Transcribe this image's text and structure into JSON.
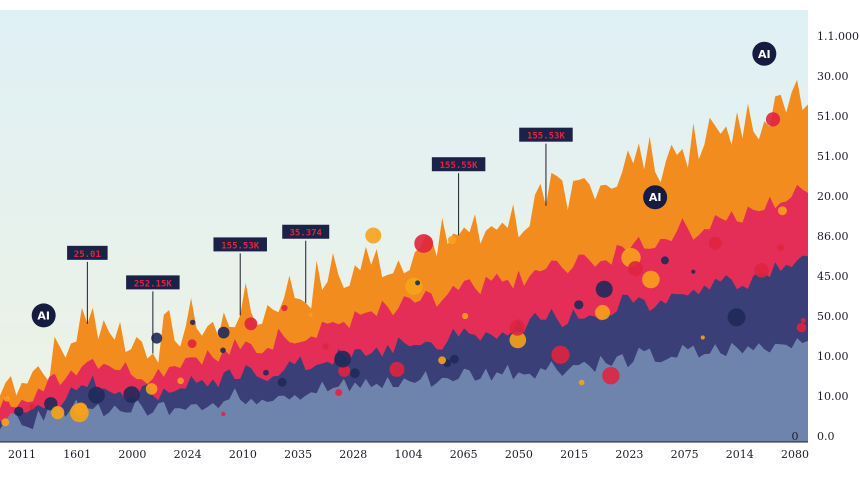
{
  "chart_data": {
    "type": "area",
    "title": "",
    "xlabel": "",
    "ylabel": "",
    "x_tick_labels": [
      "2011",
      "1601",
      "2000",
      "2024",
      "2010",
      "2035",
      "2028",
      "1004",
      "2065",
      "2050",
      "2015",
      "2023",
      "2075",
      "2014",
      "2080"
    ],
    "y_tick_labels_top_to_bottom": [
      "1.1.000",
      "30.00",
      "51.00",
      "51.00",
      "20.00",
      "86.00",
      "45.00",
      "50.00",
      "10.00",
      "10.00",
      "0.0"
    ],
    "y_zero_label": "0",
    "ylim": [
      0,
      100
    ],
    "grid": false,
    "legend": "none",
    "series": [
      {
        "color": "#f28c1e",
        "values": [
          11,
          14,
          16,
          20,
          28,
          26,
          22,
          21,
          24,
          27,
          25,
          30,
          28,
          34,
          33,
          38,
          37,
          42,
          40,
          45,
          44,
          49,
          47,
          52,
          50,
          56,
          55,
          61,
          60,
          66,
          64,
          68,
          67,
          73,
          72,
          76,
          78,
          80
        ]
      },
      {
        "color": "#e52e57",
        "values": [
          8,
          10,
          12,
          15,
          19,
          18,
          16,
          15,
          18,
          20,
          19,
          22,
          21,
          25,
          24,
          28,
          27,
          31,
          30,
          33,
          32,
          36,
          35,
          38,
          37,
          41,
          40,
          43,
          42,
          47,
          46,
          50,
          49,
          53,
          52,
          55,
          57,
          59
        ]
      },
      {
        "color": "#3b3f78",
        "values": [
          5,
          7,
          8,
          10,
          13,
          12,
          11,
          11,
          12,
          14,
          13,
          15,
          15,
          17,
          17,
          19,
          19,
          21,
          21,
          23,
          22,
          25,
          24,
          26,
          26,
          29,
          28,
          30,
          30,
          33,
          32,
          35,
          35,
          38,
          37,
          40,
          42,
          44
        ]
      },
      {
        "color": "#6e84ad",
        "values": [
          3,
          4,
          5,
          6,
          8,
          7,
          7,
          7,
          8,
          9,
          8,
          10,
          10,
          11,
          11,
          12,
          12,
          13,
          13,
          14,
          14,
          15,
          15,
          16,
          16,
          17,
          17,
          18,
          18,
          19,
          19,
          20,
          20,
          21,
          21,
          22,
          23,
          24
        ]
      }
    ],
    "callouts": [
      {
        "label": "25.01",
        "x_index": 4
      },
      {
        "label": "252.15K",
        "x_index": 7
      },
      {
        "label": "155.53K",
        "x_index": 11
      },
      {
        "label": "35.374",
        "x_index": 14
      },
      {
        "label": "155.55K",
        "x_index": 21
      },
      {
        "label": "155.53K",
        "x_index": 25
      }
    ],
    "badges": [
      {
        "text": "AI",
        "x_index": 35,
        "level": 92
      },
      {
        "text": "AI",
        "x_index": 2,
        "level": 30
      },
      {
        "text": "AI",
        "x_index": 30,
        "level": 58
      }
    ]
  },
  "colors": {
    "sky_top": "#dff0f5",
    "sky_bottom": "#eef3e4",
    "dot_orange": "#f7a21b",
    "dot_red": "#e0243f",
    "dot_navy": "#1f2a5a"
  }
}
